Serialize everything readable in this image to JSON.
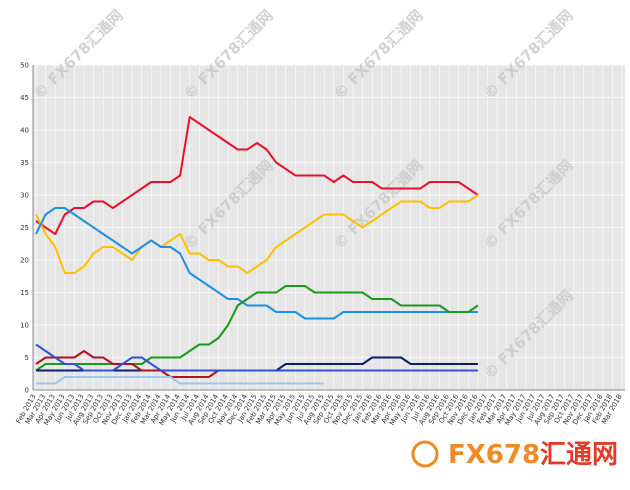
{
  "chart_data": {
    "type": "line",
    "categories": [
      "Feb 2013",
      "Mar 2013",
      "Apr 2013",
      "May 2013",
      "Jun 2013",
      "Jul 2013",
      "Aug 2013",
      "Sep 2013",
      "Oct 2013",
      "Nov 2013",
      "Dec 2013",
      "Jan 2014",
      "Feb 2014",
      "Mar 2014",
      "Apr 2014",
      "May 2014",
      "Jun 2014",
      "Jul 2014",
      "Aug 2014",
      "Sep 2014",
      "Oct 2014",
      "Nov 2014",
      "Dec 2014",
      "Jan 2015",
      "Feb 2015",
      "Mar 2015",
      "Apr 2015",
      "May 2015",
      "Jun 2015",
      "Jul 2015",
      "Aug 2015",
      "Sep 2015",
      "Oct 2015",
      "Nov 2015",
      "Dec 2015",
      "Jan 2016",
      "Feb 2016",
      "Mar 2016",
      "Apr 2016",
      "May 2016",
      "Jun 2016",
      "Jul 2016",
      "Aug 2016",
      "Sep 2016",
      "Oct 2016",
      "Nov 2016",
      "Dec 2016",
      "Jan 2017",
      "Feb 2017",
      "Mar 2017",
      "Apr 2017",
      "May 2017",
      "Jun 2017",
      "Jul 2017",
      "Aug 2017",
      "Sep 2017",
      "Oct 2017",
      "Nov 2017",
      "Dec 2017",
      "Jan 2018",
      "Feb 2018",
      "Mar 2018"
    ],
    "series": [
      {
        "color": "#e8112d",
        "values": [
          26,
          25,
          24,
          27,
          28,
          28,
          29,
          29,
          28,
          29,
          30,
          31,
          32,
          32,
          32,
          33,
          42,
          41,
          40,
          39,
          38,
          37,
          37,
          38,
          37,
          35,
          34,
          33,
          33,
          33,
          33,
          32,
          33,
          32,
          32,
          32,
          31,
          31,
          31,
          31,
          31,
          32,
          32,
          32,
          32,
          31,
          30,
          null,
          null,
          null,
          null,
          null,
          null,
          null,
          null,
          null,
          null,
          null,
          null,
          null,
          null,
          null
        ]
      },
      {
        "color": "#ffc000",
        "values": [
          27,
          24,
          22,
          18,
          18,
          19,
          21,
          22,
          22,
          21,
          20,
          22,
          23,
          22,
          23,
          24,
          21,
          21,
          20,
          20,
          19,
          19,
          18,
          19,
          20,
          22,
          23,
          24,
          25,
          26,
          27,
          27,
          27,
          26,
          25,
          26,
          27,
          28,
          29,
          29,
          29,
          28,
          28,
          29,
          29,
          29,
          30,
          null,
          null,
          null,
          null,
          null,
          null,
          null,
          null,
          null,
          null,
          null,
          null,
          null,
          null,
          null
        ]
      },
      {
        "color": "#1e90e0",
        "values": [
          24,
          27,
          28,
          28,
          27,
          26,
          25,
          24,
          23,
          22,
          21,
          22,
          23,
          22,
          22,
          21,
          18,
          17,
          16,
          15,
          14,
          14,
          13,
          13,
          13,
          12,
          12,
          12,
          11,
          11,
          11,
          11,
          12,
          12,
          12,
          12,
          12,
          12,
          12,
          12,
          12,
          12,
          12,
          12,
          12,
          12,
          12,
          null,
          null,
          null,
          null,
          null,
          null,
          null,
          null,
          null,
          null,
          null,
          null,
          null,
          null,
          null
        ]
      },
      {
        "color": "#1a9a1a",
        "values": [
          3,
          4,
          4,
          4,
          4,
          4,
          4,
          4,
          4,
          4,
          4,
          4,
          5,
          5,
          5,
          5,
          6,
          7,
          7,
          8,
          10,
          13,
          14,
          15,
          15,
          15,
          16,
          16,
          16,
          15,
          15,
          15,
          15,
          15,
          15,
          14,
          14,
          14,
          13,
          13,
          13,
          13,
          13,
          12,
          12,
          12,
          13,
          null,
          null,
          null,
          null,
          null,
          null,
          null,
          null,
          null,
          null,
          null,
          null,
          null,
          null,
          null
        ]
      },
      {
        "color": "#0a1e6e",
        "values": [
          3,
          3,
          3,
          3,
          3,
          3,
          3,
          3,
          3,
          3,
          3,
          3,
          3,
          3,
          3,
          3,
          3,
          3,
          3,
          3,
          3,
          3,
          3,
          3,
          3,
          3,
          4,
          4,
          4,
          4,
          4,
          4,
          4,
          4,
          4,
          5,
          5,
          5,
          5,
          4,
          4,
          4,
          4,
          4,
          4,
          4,
          4,
          null,
          null,
          null,
          null,
          null,
          null,
          null,
          null,
          null,
          null,
          null,
          null,
          null,
          null,
          null
        ]
      },
      {
        "color": "#b01020",
        "values": [
          4,
          5,
          5,
          5,
          5,
          6,
          5,
          5,
          4,
          4,
          4,
          3,
          3,
          3,
          2,
          2,
          2,
          2,
          2,
          3,
          3,
          3,
          3,
          3,
          3,
          3,
          3,
          3,
          3,
          3,
          3,
          3,
          3,
          3,
          3,
          3,
          3,
          3,
          3,
          3,
          3,
          3,
          3,
          3,
          3,
          3,
          3,
          null,
          null,
          null,
          null,
          null,
          null,
          null,
          null,
          null,
          null,
          null,
          null,
          null,
          null,
          null
        ]
      },
      {
        "color": "#3050d8",
        "values": [
          7,
          6,
          5,
          4,
          4,
          3,
          3,
          3,
          3,
          4,
          5,
          5,
          4,
          3,
          3,
          3,
          3,
          3,
          3,
          3,
          3,
          3,
          3,
          3,
          3,
          3,
          3,
          3,
          3,
          3,
          3,
          3,
          3,
          3,
          3,
          3,
          3,
          3,
          3,
          3,
          3,
          3,
          3,
          3,
          3,
          3,
          3,
          null,
          null,
          null,
          null,
          null,
          null,
          null,
          null,
          null,
          null,
          null,
          null,
          null,
          null,
          null
        ]
      },
      {
        "color": "#9cc8f0",
        "values": [
          1,
          1,
          1,
          2,
          2,
          2,
          2,
          2,
          2,
          2,
          2,
          2,
          2,
          2,
          2,
          1,
          1,
          1,
          1,
          1,
          1,
          1,
          1,
          1,
          1,
          1,
          1,
          1,
          1,
          1,
          1,
          null,
          null,
          null,
          null,
          null,
          null,
          null,
          null,
          null,
          null,
          null,
          null,
          null,
          null,
          null,
          null,
          null,
          null,
          null,
          null,
          null,
          null,
          null,
          null,
          null,
          null,
          null,
          null,
          null,
          null,
          null
        ]
      }
    ],
    "ylim": [
      0,
      50
    ],
    "yticks": [
      0,
      5,
      10,
      15,
      20,
      25,
      30,
      35,
      40,
      45,
      50
    ],
    "grid": true,
    "watermark": "© FX678汇通网",
    "logo_left": "FX678",
    "logo_right": "汇通网"
  }
}
